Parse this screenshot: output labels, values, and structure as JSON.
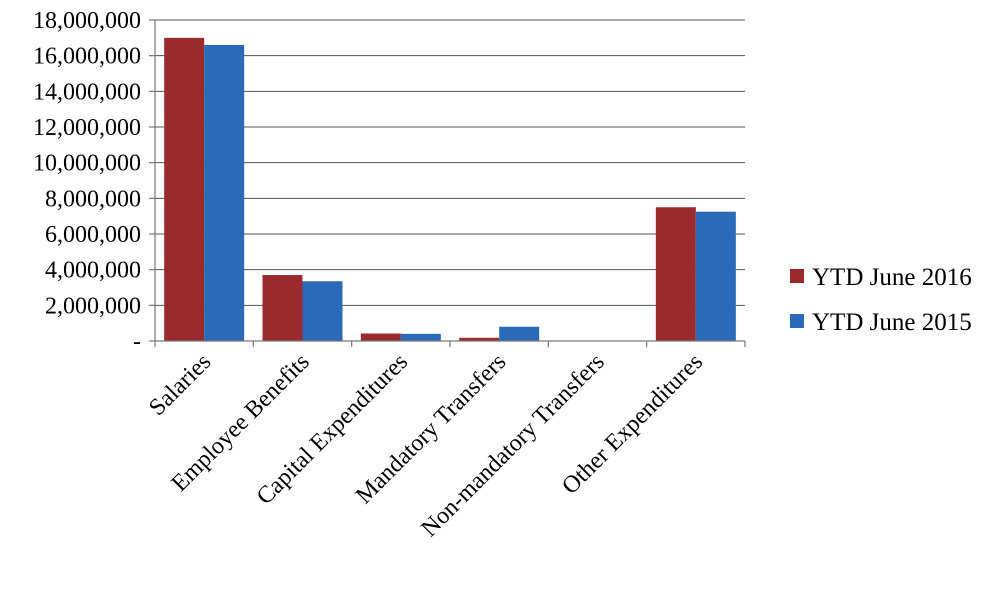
{
  "chart_data": {
    "type": "bar",
    "categories": [
      "Salaries",
      "Employee Benefits",
      "Capital Expenditures",
      "Mandatory Transfers",
      "Non-mandatory Transfers",
      "Other Expenditures"
    ],
    "series": [
      {
        "name": "YTD June 2016",
        "color": "#9b2a2e",
        "values": [
          17000000,
          3700000,
          420000,
          180000,
          0,
          7500000
        ]
      },
      {
        "name": "YTD June 2015",
        "color": "#2a6ab8",
        "values": [
          16600000,
          3350000,
          400000,
          800000,
          0,
          7250000
        ]
      }
    ],
    "ylim": [
      0,
      18000000
    ],
    "yticks": [
      0,
      2000000,
      4000000,
      6000000,
      8000000,
      10000000,
      12000000,
      14000000,
      16000000,
      18000000
    ],
    "ytick_labels": [
      "-",
      "2,000,000",
      "4,000,000",
      "6,000,000",
      "8,000,000",
      "10,000,000",
      "12,000,000",
      "14,000,000",
      "16,000,000",
      "18,000,000"
    ],
    "grid": true,
    "legend_position": "right"
  }
}
